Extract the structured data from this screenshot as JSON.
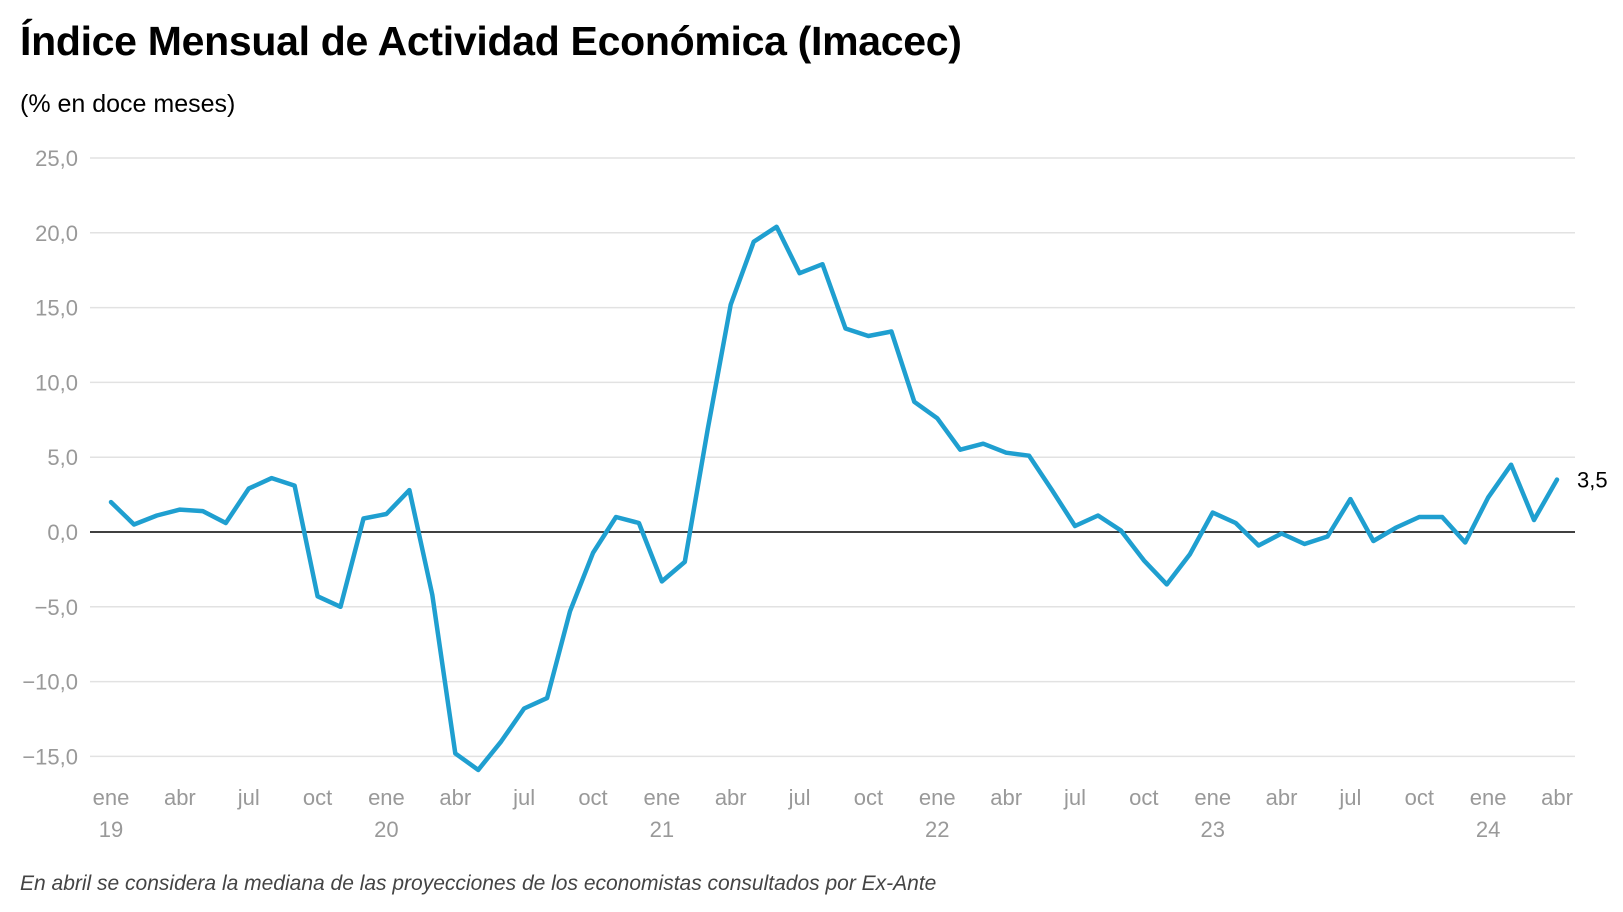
{
  "header": {
    "title": "Índice Mensual de Actividad Económica (Imacec)",
    "subtitle": "(% en doce meses)"
  },
  "footer": {
    "note": "En abril se considera la mediana de las proyecciones de los economistas consultados por Ex-Ante"
  },
  "colors": {
    "series": "#1f9fd0",
    "zero_line": "#000000",
    "grid": "#e2e2e2",
    "tick_text": "#999999"
  },
  "chart_data": {
    "type": "line",
    "title": "Índice Mensual de Actividad Económica (Imacec)",
    "subtitle": "(% en doce meses)",
    "xlabel": "",
    "ylabel": "",
    "ylim": [
      -16.5,
      25.0
    ],
    "yticks": [
      25,
      20,
      15,
      10,
      5,
      0,
      -5,
      -10,
      -15
    ],
    "ytick_labels": [
      "25,0",
      "20,0",
      "15,0",
      "10,0",
      "5,0",
      "0,0",
      "−5,0",
      "−10,0",
      "−15,0"
    ],
    "grid": true,
    "x_tick_labels": [
      {
        "month": "ene",
        "year": "19"
      },
      {
        "month": "abr",
        "year": ""
      },
      {
        "month": "jul",
        "year": ""
      },
      {
        "month": "oct",
        "year": ""
      },
      {
        "month": "ene",
        "year": "20"
      },
      {
        "month": "abr",
        "year": ""
      },
      {
        "month": "jul",
        "year": ""
      },
      {
        "month": "oct",
        "year": ""
      },
      {
        "month": "ene",
        "year": "21"
      },
      {
        "month": "abr",
        "year": ""
      },
      {
        "month": "jul",
        "year": ""
      },
      {
        "month": "oct",
        "year": ""
      },
      {
        "month": "ene",
        "year": "22"
      },
      {
        "month": "abr",
        "year": ""
      },
      {
        "month": "jul",
        "year": ""
      },
      {
        "month": "oct",
        "year": ""
      },
      {
        "month": "ene",
        "year": "23"
      },
      {
        "month": "abr",
        "year": ""
      },
      {
        "month": "jul",
        "year": ""
      },
      {
        "month": "oct",
        "year": ""
      },
      {
        "month": "ene",
        "year": "24"
      },
      {
        "month": "abr",
        "year": ""
      }
    ],
    "x": [
      "2019-01",
      "2019-02",
      "2019-03",
      "2019-04",
      "2019-05",
      "2019-06",
      "2019-07",
      "2019-08",
      "2019-09",
      "2019-10",
      "2019-11",
      "2019-12",
      "2020-01",
      "2020-02",
      "2020-03",
      "2020-04",
      "2020-05",
      "2020-06",
      "2020-07",
      "2020-08",
      "2020-09",
      "2020-10",
      "2020-11",
      "2020-12",
      "2021-01",
      "2021-02",
      "2021-03",
      "2021-04",
      "2021-05",
      "2021-06",
      "2021-07",
      "2021-08",
      "2021-09",
      "2021-10",
      "2021-11",
      "2021-12",
      "2022-01",
      "2022-02",
      "2022-03",
      "2022-04",
      "2022-05",
      "2022-06",
      "2022-07",
      "2022-08",
      "2022-09",
      "2022-10",
      "2022-11",
      "2022-12",
      "2023-01",
      "2023-02",
      "2023-03",
      "2023-04",
      "2023-05",
      "2023-06",
      "2023-07",
      "2023-08",
      "2023-09",
      "2023-10",
      "2023-11",
      "2023-12",
      "2024-01",
      "2024-02",
      "2024-03",
      "2024-04"
    ],
    "series": [
      {
        "values": [
          2.0,
          0.5,
          1.1,
          1.5,
          1.4,
          0.6,
          2.9,
          3.6,
          3.1,
          -4.3,
          -5.0,
          0.9,
          1.2,
          2.8,
          -4.2,
          -14.8,
          -15.9,
          -14.0,
          -11.8,
          -11.1,
          -5.3,
          -1.4,
          1.0,
          0.6,
          -3.3,
          -2.0,
          6.9,
          15.2,
          19.4,
          20.4,
          17.3,
          17.9,
          13.6,
          13.1,
          13.4,
          8.7,
          7.6,
          5.5,
          5.9,
          5.3,
          5.1,
          2.8,
          0.4,
          1.1,
          0.1,
          -1.9,
          -3.5,
          -1.5,
          1.3,
          0.6,
          -0.9,
          -0.1,
          -0.8,
          -0.3,
          2.2,
          -0.6,
          0.3,
          1.0,
          1.0,
          -0.7,
          2.3,
          4.5,
          0.8,
          3.5
        ]
      }
    ],
    "end_label": "3,5"
  }
}
